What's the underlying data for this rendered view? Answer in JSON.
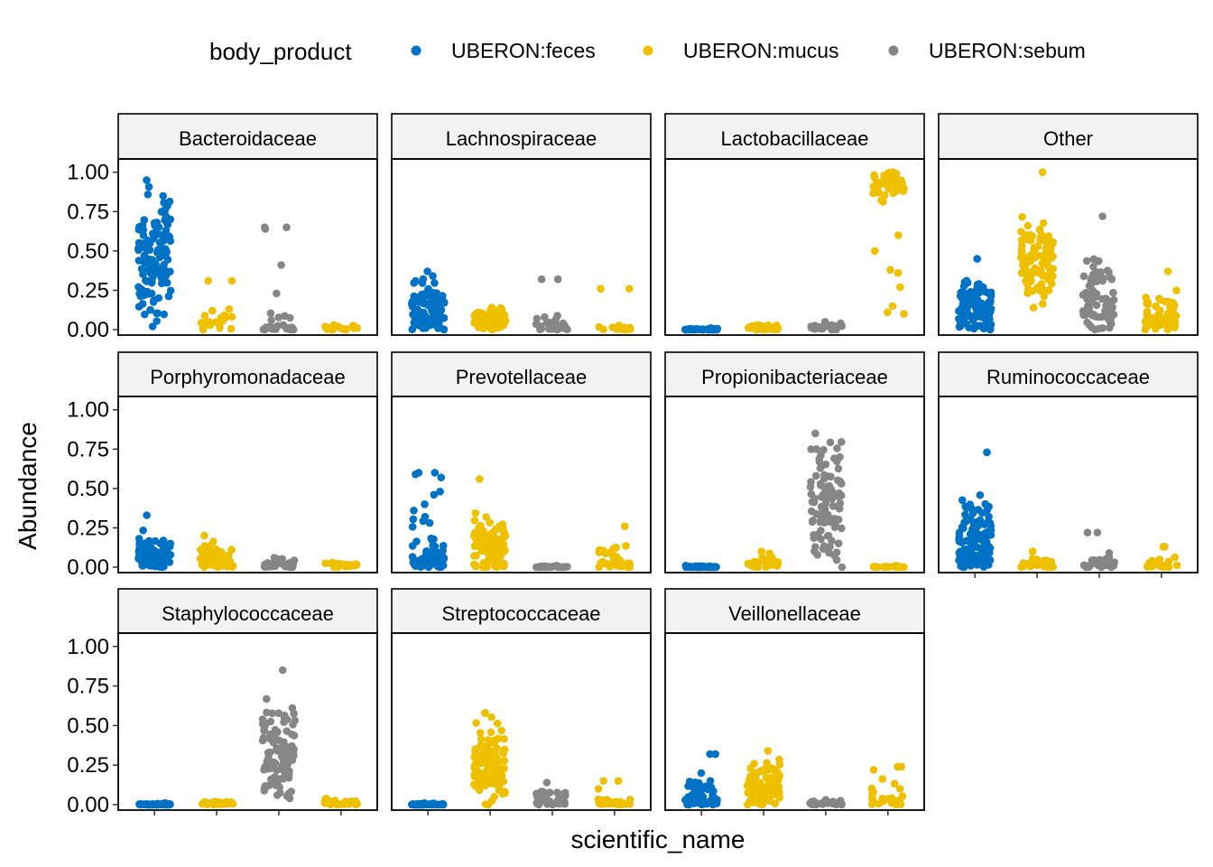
{
  "chart_data": {
    "type": "scatter",
    "xlabel": "scientific_name",
    "ylabel": "Abundance",
    "ylim": [
      0,
      1.05
    ],
    "yticks": [
      "0.00",
      "0.25",
      "0.50",
      "0.75",
      "1.00"
    ],
    "ytick_values": [
      0,
      0.25,
      0.5,
      0.75,
      1.0
    ],
    "grid": false,
    "legend_position": "top",
    "legend": {
      "title": "body_product",
      "entries": [
        {
          "name": "UBERON:feces",
          "color": "#0072C6"
        },
        {
          "name": "UBERON:mucus",
          "color": "#EFC000"
        },
        {
          "name": "UBERON:sebum",
          "color": "#868686"
        }
      ]
    },
    "x_categories": 4,
    "category_groups": [
      "UBERON:feces",
      "UBERON:mucus",
      "UBERON:sebum",
      "UBERON:mucus"
    ],
    "facets": [
      {
        "name": "Bacteroidaceae",
        "groups": [
          {
            "body_product": "UBERON:feces",
            "n": 120,
            "min": 0.02,
            "max": 0.95,
            "center": 0.45,
            "spread": 0.2
          },
          {
            "body_product": "UBERON:mucus",
            "n": 22,
            "min": 0.0,
            "max": 0.31,
            "center": 0.03,
            "spread": 0.05,
            "outliers": [
              0.31,
              0.13,
              0.12
            ]
          },
          {
            "body_product": "UBERON:sebum",
            "n": 28,
            "min": 0.0,
            "max": 0.65,
            "center": 0.02,
            "spread": 0.04,
            "outliers": [
              0.65,
              0.64,
              0.41,
              0.23
            ]
          },
          {
            "body_product": "UBERON:mucus",
            "n": 18,
            "min": 0.0,
            "max": 0.03,
            "center": 0.01,
            "spread": 0.01
          }
        ]
      },
      {
        "name": "Lachnospiraceae",
        "groups": [
          {
            "body_product": "UBERON:feces",
            "n": 110,
            "min": 0.0,
            "max": 0.37,
            "center": 0.12,
            "spread": 0.09
          },
          {
            "body_product": "UBERON:mucus",
            "n": 80,
            "min": 0.0,
            "max": 0.14,
            "center": 0.06,
            "spread": 0.04
          },
          {
            "body_product": "UBERON:sebum",
            "n": 28,
            "min": 0.0,
            "max": 0.32,
            "center": 0.02,
            "spread": 0.03,
            "outliers": [
              0.32,
              0.08,
              0.07
            ]
          },
          {
            "body_product": "UBERON:mucus",
            "n": 20,
            "min": 0.0,
            "max": 0.26,
            "center": 0.01,
            "spread": 0.01,
            "outliers": [
              0.26
            ]
          }
        ]
      },
      {
        "name": "Lactobacillaceae",
        "groups": [
          {
            "body_product": "UBERON:feces",
            "n": 60,
            "min": 0.0,
            "max": 0.01,
            "center": 0.0,
            "spread": 0.003
          },
          {
            "body_product": "UBERON:mucus",
            "n": 30,
            "min": 0.0,
            "max": 0.03,
            "center": 0.01,
            "spread": 0.008
          },
          {
            "body_product": "UBERON:sebum",
            "n": 30,
            "min": 0.0,
            "max": 0.05,
            "center": 0.01,
            "spread": 0.012
          },
          {
            "body_product": "UBERON:mucus",
            "n": 60,
            "min": 0.1,
            "max": 1.0,
            "center": 0.93,
            "spread": 0.06,
            "outliers": [
              0.6,
              0.5,
              0.38,
              0.36,
              0.27,
              0.15,
              0.11
            ]
          }
        ]
      },
      {
        "name": "Other",
        "groups": [
          {
            "body_product": "UBERON:feces",
            "n": 110,
            "min": 0.0,
            "max": 0.45,
            "center": 0.15,
            "spread": 0.09
          },
          {
            "body_product": "UBERON:mucus",
            "n": 100,
            "min": 0.14,
            "max": 1.0,
            "center": 0.45,
            "spread": 0.12
          },
          {
            "body_product": "UBERON:sebum",
            "n": 80,
            "min": 0.0,
            "max": 0.72,
            "center": 0.2,
            "spread": 0.12
          },
          {
            "body_product": "UBERON:mucus",
            "n": 60,
            "min": 0.0,
            "max": 0.37,
            "center": 0.08,
            "spread": 0.08
          }
        ]
      },
      {
        "name": "Porphyromonadaceae",
        "groups": [
          {
            "body_product": "UBERON:feces",
            "n": 100,
            "min": 0.0,
            "max": 0.33,
            "center": 0.08,
            "spread": 0.06
          },
          {
            "body_product": "UBERON:mucus",
            "n": 70,
            "min": 0.0,
            "max": 0.2,
            "center": 0.06,
            "spread": 0.04
          },
          {
            "body_product": "UBERON:sebum",
            "n": 40,
            "min": 0.0,
            "max": 0.06,
            "center": 0.02,
            "spread": 0.015
          },
          {
            "body_product": "UBERON:mucus",
            "n": 25,
            "min": 0.0,
            "max": 0.03,
            "center": 0.01,
            "spread": 0.008
          }
        ]
      },
      {
        "name": "Prevotellaceae",
        "groups": [
          {
            "body_product": "UBERON:feces",
            "n": 80,
            "min": 0.0,
            "max": 0.6,
            "center": 0.05,
            "spread": 0.1,
            "outliers": [
              0.6,
              0.59,
              0.57,
              0.48,
              0.46,
              0.4,
              0.36,
              0.32
            ]
          },
          {
            "body_product": "UBERON:mucus",
            "n": 100,
            "min": 0.0,
            "max": 0.56,
            "center": 0.15,
            "spread": 0.08
          },
          {
            "body_product": "UBERON:sebum",
            "n": 30,
            "min": 0.0,
            "max": 0.01,
            "center": 0.0,
            "spread": 0.004
          },
          {
            "body_product": "UBERON:mucus",
            "n": 35,
            "min": 0.0,
            "max": 0.26,
            "center": 0.04,
            "spread": 0.06
          }
        ]
      },
      {
        "name": "Propionibacteriaceae",
        "groups": [
          {
            "body_product": "UBERON:feces",
            "n": 60,
            "min": 0.0,
            "max": 0.01,
            "center": 0.0,
            "spread": 0.003
          },
          {
            "body_product": "UBERON:mucus",
            "n": 35,
            "min": 0.0,
            "max": 0.1,
            "center": 0.02,
            "spread": 0.025
          },
          {
            "body_product": "UBERON:sebum",
            "n": 100,
            "min": 0.0,
            "max": 0.85,
            "center": 0.4,
            "spread": 0.18
          },
          {
            "body_product": "UBERON:mucus",
            "n": 25,
            "min": 0.0,
            "max": 0.01,
            "center": 0.0,
            "spread": 0.004
          }
        ]
      },
      {
        "name": "Ruminococcaceae",
        "groups": [
          {
            "body_product": "UBERON:feces",
            "n": 120,
            "min": 0.0,
            "max": 0.73,
            "center": 0.18,
            "spread": 0.12
          },
          {
            "body_product": "UBERON:mucus",
            "n": 35,
            "min": 0.0,
            "max": 0.1,
            "center": 0.02,
            "spread": 0.02
          },
          {
            "body_product": "UBERON:sebum",
            "n": 30,
            "min": 0.0,
            "max": 0.22,
            "center": 0.02,
            "spread": 0.025,
            "outliers": [
              0.22,
              0.09
            ]
          },
          {
            "body_product": "UBERON:mucus",
            "n": 25,
            "min": 0.0,
            "max": 0.13,
            "center": 0.02,
            "spread": 0.025,
            "outliers": [
              0.13
            ]
          }
        ]
      },
      {
        "name": "Staphylococcaceae",
        "groups": [
          {
            "body_product": "UBERON:feces",
            "n": 60,
            "min": 0.0,
            "max": 0.01,
            "center": 0.0,
            "spread": 0.003
          },
          {
            "body_product": "UBERON:mucus",
            "n": 40,
            "min": 0.0,
            "max": 0.02,
            "center": 0.01,
            "spread": 0.005
          },
          {
            "body_product": "UBERON:sebum",
            "n": 100,
            "min": 0.04,
            "max": 0.85,
            "center": 0.35,
            "spread": 0.17
          },
          {
            "body_product": "UBERON:mucus",
            "n": 30,
            "min": 0.0,
            "max": 0.04,
            "center": 0.01,
            "spread": 0.01
          }
        ]
      },
      {
        "name": "Streptococcaceae",
        "groups": [
          {
            "body_product": "UBERON:feces",
            "n": 60,
            "min": 0.0,
            "max": 0.01,
            "center": 0.0,
            "spread": 0.003
          },
          {
            "body_product": "UBERON:mucus",
            "n": 110,
            "min": 0.0,
            "max": 0.58,
            "center": 0.25,
            "spread": 0.13
          },
          {
            "body_product": "UBERON:sebum",
            "n": 40,
            "min": 0.0,
            "max": 0.14,
            "center": 0.04,
            "spread": 0.03
          },
          {
            "body_product": "UBERON:mucus",
            "n": 25,
            "min": 0.0,
            "max": 0.15,
            "center": 0.01,
            "spread": 0.02,
            "outliers": [
              0.15,
              0.1
            ]
          }
        ]
      },
      {
        "name": "Veillonellaceae",
        "groups": [
          {
            "body_product": "UBERON:feces",
            "n": 70,
            "min": 0.0,
            "max": 0.32,
            "center": 0.04,
            "spread": 0.05,
            "outliers": [
              0.32,
              0.2,
              0.15
            ]
          },
          {
            "body_product": "UBERON:mucus",
            "n": 100,
            "min": 0.0,
            "max": 0.34,
            "center": 0.12,
            "spread": 0.07
          },
          {
            "body_product": "UBERON:sebum",
            "n": 30,
            "min": 0.0,
            "max": 0.03,
            "center": 0.01,
            "spread": 0.008
          },
          {
            "body_product": "UBERON:mucus",
            "n": 30,
            "min": 0.0,
            "max": 0.24,
            "center": 0.03,
            "spread": 0.05,
            "outliers": [
              0.24,
              0.22,
              0.1
            ]
          }
        ]
      }
    ]
  }
}
